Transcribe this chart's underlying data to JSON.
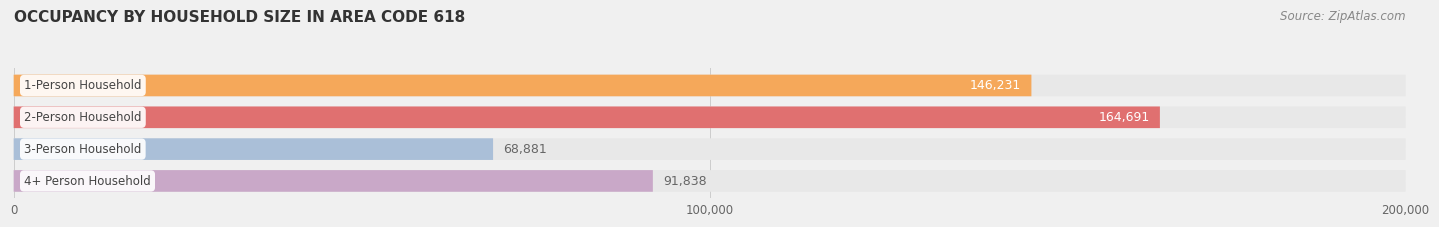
{
  "title": "OCCUPANCY BY HOUSEHOLD SIZE IN AREA CODE 618",
  "source": "Source: ZipAtlas.com",
  "categories": [
    "1-Person Household",
    "2-Person Household",
    "3-Person Household",
    "4+ Person Household"
  ],
  "values": [
    146231,
    164691,
    68881,
    91838
  ],
  "bar_colors": [
    "#F5A85A",
    "#E07070",
    "#AABFD8",
    "#C9A8C8"
  ],
  "label_colors": [
    "white",
    "white",
    "#666666",
    "#666666"
  ],
  "xlim": [
    0,
    200000
  ],
  "xtick_labels": [
    "0",
    "100,000",
    "200,000"
  ],
  "background_color": "#f0f0f0",
  "bar_background_color": "#e8e8e8",
  "title_fontsize": 11,
  "source_fontsize": 8.5,
  "bar_label_fontsize": 9,
  "category_fontsize": 8.5
}
